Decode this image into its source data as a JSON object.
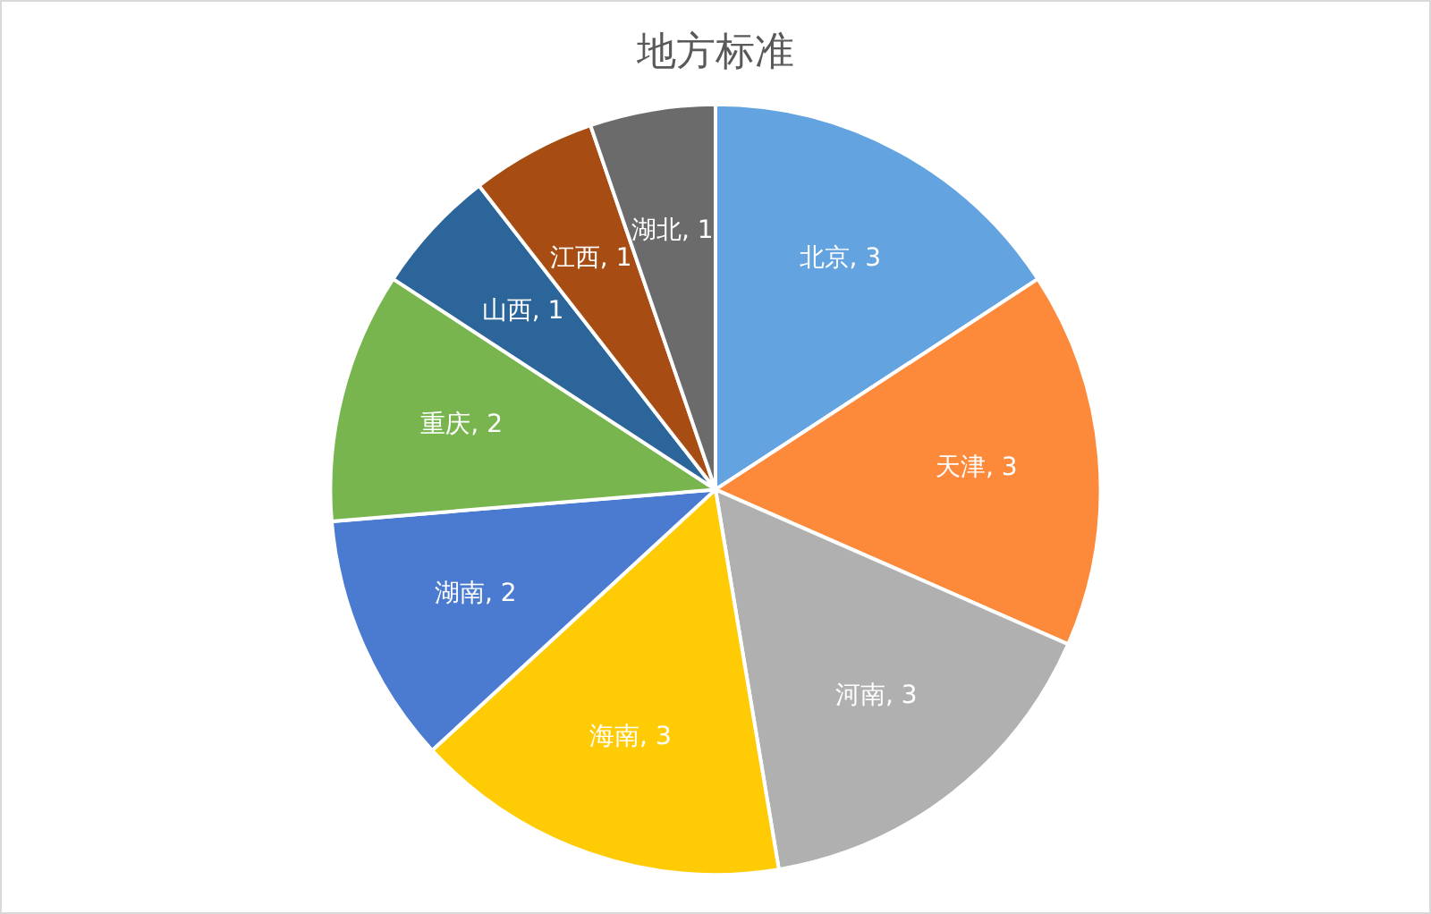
{
  "chart_data": {
    "type": "pie",
    "title": "地方标准",
    "categories": [
      "北京",
      "天津",
      "河南",
      "海南",
      "湖南",
      "重庆",
      "山西",
      "江西",
      "湖北"
    ],
    "values": [
      3,
      3,
      3,
      3,
      2,
      2,
      1,
      1,
      1
    ],
    "value_labels": [
      ", 3",
      ", 3",
      ", 3",
      ", 3",
      ", 2",
      ", 2",
      ", 1",
      ", 1",
      ", 1"
    ],
    "colors": [
      "#62a3e0",
      "#fd8a3a",
      "#b0b0b0",
      "#ffcb05",
      "#4a7bd0",
      "#78b54e",
      "#2b6599",
      "#a74d14",
      "#6b6b6b"
    ],
    "legend": false
  }
}
